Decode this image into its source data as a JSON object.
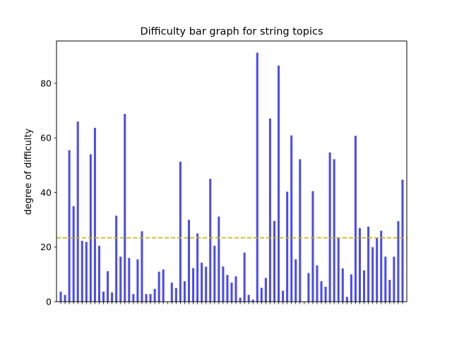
{
  "chart_data": {
    "type": "bar",
    "title": "Difficulty bar graph for string topics",
    "xlabel": "",
    "ylabel": "degree of difficulty",
    "ylim": [
      0,
      95.5
    ],
    "yticks": [
      0,
      20,
      40,
      60,
      80
    ],
    "categories_count": 81,
    "x_tick_labels": "none",
    "values": [
      3.7,
      2.5,
      55.5,
      35,
      66,
      22.3,
      21.9,
      54,
      63.7,
      20.5,
      3.7,
      11.2,
      3.4,
      31.5,
      16.5,
      68.8,
      16,
      2.8,
      15.5,
      25.8,
      2.8,
      2.8,
      4.7,
      11,
      11.8,
      0,
      7,
      5,
      51.3,
      7.5,
      30,
      12.3,
      25,
      14.3,
      12.8,
      45,
      20.5,
      31.2,
      12.9,
      9.8,
      7,
      9.3,
      1.5,
      18,
      2.5,
      0.8,
      91.2,
      5.1,
      8.7,
      67.1,
      29.6,
      86.5,
      4,
      40.3,
      60.9,
      15.5,
      52.2,
      0,
      10.5,
      40.5,
      13.3,
      7.5,
      5.5,
      54.7,
      52.2,
      23.3,
      12.2,
      1.8,
      10,
      60.8,
      27,
      11.5,
      27.5,
      20,
      23.3,
      26,
      16.5,
      8,
      16.5,
      29.5,
      44.7
    ],
    "bar_color": "#4b4bed",
    "mean_line": {
      "value": 23.4,
      "color": "#c8b400",
      "style": "dashed"
    },
    "grid": false,
    "legend": "none"
  }
}
